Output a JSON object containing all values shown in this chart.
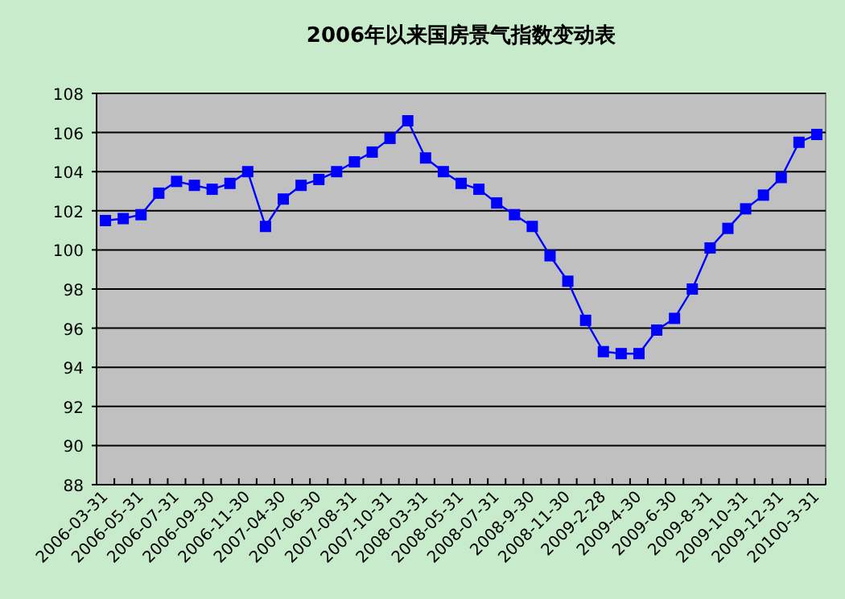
{
  "chart_data": {
    "type": "line",
    "title": "2006年以来国房景气指数变动表",
    "categories": [
      "2006-03-31",
      null,
      "2006-05-31",
      null,
      "2006-07-31",
      null,
      "2006-09-30",
      null,
      "2006-11-30",
      null,
      "2007-04-30",
      null,
      "2007-06-30",
      null,
      "2007-08-31",
      null,
      "2007-10-31",
      null,
      "2008-03-31",
      null,
      "2008-05-31",
      null,
      "2008-07-31",
      null,
      "2008-9-30",
      null,
      "2008-11-30",
      null,
      "2009-2-28",
      null,
      "2009-4-30",
      null,
      "2009-6-30",
      null,
      "2009-8-31",
      null,
      "2009-10-31",
      null,
      "2009-12-31",
      null,
      "20100-3-31"
    ],
    "values": [
      101.5,
      101.6,
      101.8,
      102.9,
      103.5,
      103.3,
      103.1,
      103.4,
      104.0,
      101.2,
      102.6,
      103.3,
      103.6,
      104.0,
      104.5,
      105.0,
      105.7,
      106.6,
      104.7,
      104.0,
      103.4,
      103.1,
      102.4,
      101.8,
      101.2,
      99.7,
      98.4,
      96.4,
      94.8,
      94.7,
      94.7,
      95.9,
      96.5,
      98.0,
      100.1,
      101.1,
      102.1,
      102.8,
      103.7,
      105.5,
      105.9
    ],
    "color": "#0000ff",
    "marker": "square",
    "line_style": "solid",
    "ylim": [
      88,
      108
    ],
    "yticks": [
      88,
      90,
      92,
      94,
      96,
      98,
      100,
      102,
      104,
      106,
      108
    ],
    "grid": "y"
  }
}
